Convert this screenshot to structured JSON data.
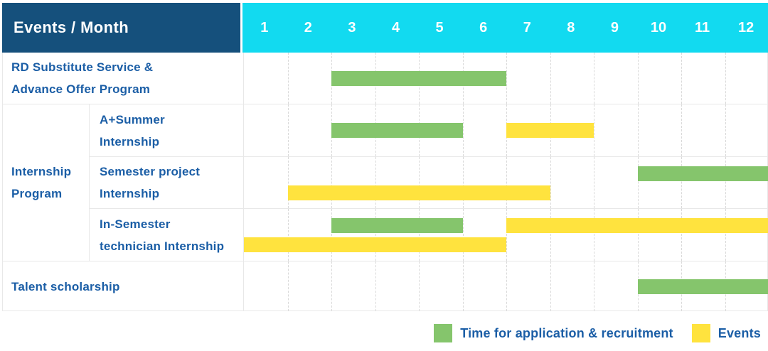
{
  "header": {
    "title": "Events / Month"
  },
  "theme": {
    "header_bg": "#15507C",
    "months_bg": "#12DAF0",
    "header_text": "#FFFFFF",
    "label_text": "#1B5EA6",
    "grid_solid": "#E8E8E8",
    "grid_dashed": "#D9D9D9"
  },
  "chart_data": {
    "type": "gantt",
    "title": "Events / Month",
    "months": [
      "1",
      "2",
      "3",
      "4",
      "5",
      "6",
      "7",
      "8",
      "9",
      "10",
      "11",
      "12"
    ],
    "month_range": [
      1,
      12
    ],
    "grid": "dashed-vertical",
    "colors": {
      "application": "#85C56C",
      "event": "#FFE33E"
    },
    "legend_position": "bottom-right",
    "legend": [
      {
        "key": "application",
        "label": "Time for application & recruitment"
      },
      {
        "key": "event",
        "label": "Events"
      }
    ],
    "group": {
      "label_lines": [
        "Internship",
        "Program"
      ],
      "first_row": 2,
      "row_span": 3
    },
    "rows": [
      {
        "label_lines": [
          "RD Substitute Service &",
          "Advance Offer Program"
        ],
        "in_group": false,
        "bars": [
          {
            "key": "application",
            "start": 3,
            "end": 7,
            "lane": "center"
          }
        ]
      },
      {
        "label_lines": [
          "A+Summer",
          "Internship"
        ],
        "in_group": true,
        "bars": [
          {
            "key": "application",
            "start": 3,
            "end": 6,
            "lane": "center"
          },
          {
            "key": "event",
            "start": 7,
            "end": 9,
            "lane": "center"
          }
        ]
      },
      {
        "label_lines": [
          "Semester project",
          "Internship"
        ],
        "in_group": true,
        "bars": [
          {
            "key": "application",
            "start": 10,
            "end": 13,
            "lane": "top"
          },
          {
            "key": "event",
            "start": 2,
            "end": 8,
            "lane": "bottom"
          }
        ]
      },
      {
        "label_lines": [
          "In-Semester",
          "technician Internship"
        ],
        "in_group": true,
        "bars": [
          {
            "key": "application",
            "start": 3,
            "end": 6,
            "lane": "top"
          },
          {
            "key": "event",
            "start": 7,
            "end": 13,
            "lane": "top"
          },
          {
            "key": "event",
            "start": 1,
            "end": 7,
            "lane": "bottom"
          }
        ]
      },
      {
        "label_lines": [
          "Talent scholarship"
        ],
        "in_group": false,
        "bars": [
          {
            "key": "application",
            "start": 10,
            "end": 13,
            "lane": "center"
          }
        ]
      }
    ]
  }
}
